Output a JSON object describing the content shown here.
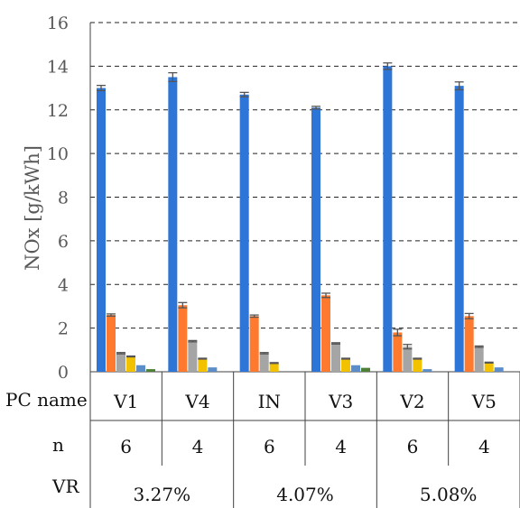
{
  "chart_data": {
    "type": "bar",
    "ylabel": "NOx [g/kWh]",
    "ylim": [
      0,
      16
    ],
    "yticks": [
      0,
      2,
      4,
      6,
      8,
      10,
      12,
      14,
      16
    ],
    "grid": "horizontal dashed",
    "categories": [
      "V1",
      "V4",
      "IN",
      "V3",
      "V2",
      "V5"
    ],
    "series": [
      {
        "color": "#2e75d8",
        "values": [
          13.0,
          13.5,
          12.7,
          12.1,
          14.0,
          13.1
        ],
        "errors": [
          0.12,
          0.2,
          0.1,
          0.06,
          0.15,
          0.18
        ]
      },
      {
        "color": "#ff7a2e",
        "values": [
          2.6,
          3.05,
          2.55,
          3.5,
          1.8,
          2.55
        ],
        "errors": [
          0.05,
          0.12,
          0.05,
          0.1,
          0.15,
          0.12
        ]
      },
      {
        "color": "#a5a5a5",
        "values": [
          0.85,
          1.4,
          0.85,
          1.3,
          1.15,
          1.15
        ],
        "errors": [
          0.03,
          0.03,
          0.03,
          0.03,
          0.1,
          0.03
        ]
      },
      {
        "color": "#f2c200",
        "values": [
          0.7,
          0.6,
          0.4,
          0.6,
          0.6,
          0.42
        ],
        "errors": [
          0.02,
          0.02,
          0.02,
          0.02,
          0.02,
          0.02
        ]
      },
      {
        "color": "#5b8ec8",
        "values": [
          0.3,
          0.2,
          0.0,
          0.3,
          0.12,
          0.2
        ],
        "errors": [
          0,
          0,
          0,
          0,
          0,
          0
        ]
      },
      {
        "color": "#4e8135",
        "values": [
          0.12,
          0.0,
          0.0,
          0.18,
          0.0,
          0.0
        ],
        "errors": [
          0,
          0,
          0,
          0,
          0,
          0
        ]
      }
    ],
    "table": {
      "row_labels": [
        "PC name",
        "n",
        "VR"
      ],
      "pc_names": [
        "V1",
        "V4",
        "IN",
        "V3",
        "V2",
        "V5"
      ],
      "n_values": [
        "6",
        "4",
        "6",
        "4",
        "6",
        "4"
      ],
      "vr_values": [
        "3.27%",
        "4.07%",
        "5.08%"
      ]
    }
  }
}
